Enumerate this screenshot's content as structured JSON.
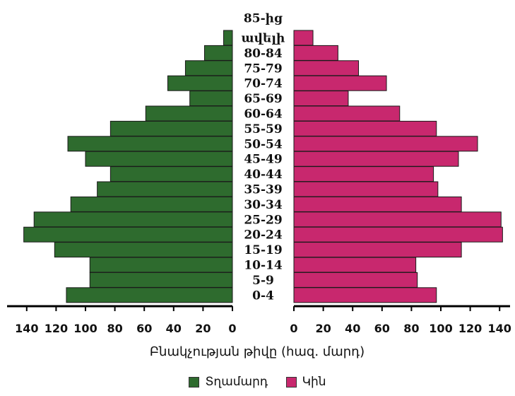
{
  "chart_data": {
    "type": "bar",
    "orientation": "horizontal-population-pyramid",
    "categories": [
      "0-4",
      "5-9",
      "10-14",
      "15-19",
      "20-24",
      "25-29",
      "30-34",
      "35-39",
      "40-44",
      "45-49",
      "50-54",
      "55-59",
      "60-64",
      "65-69",
      "70-74",
      "75-79",
      "80-84",
      "85-ից ավելի"
    ],
    "category_lines": [
      [
        "0-4"
      ],
      [
        "5-9"
      ],
      [
        "10-14"
      ],
      [
        "15-19"
      ],
      [
        "20-24"
      ],
      [
        "25-29"
      ],
      [
        "30-34"
      ],
      [
        "35-39"
      ],
      [
        "40-44"
      ],
      [
        "45-49"
      ],
      [
        "50-54"
      ],
      [
        "55-59"
      ],
      [
        "60-64"
      ],
      [
        "65-69"
      ],
      [
        "70-74"
      ],
      [
        "75-79"
      ],
      [
        "80-84"
      ],
      [
        "ավելի",
        "85-ից"
      ]
    ],
    "series": [
      {
        "name": "Տղամարդ",
        "color": "#2e6b2e",
        "values": [
          113,
          97,
          97,
          121,
          146,
          135,
          110,
          92,
          83,
          100,
          112,
          83,
          59,
          29,
          44,
          32,
          19,
          6
        ]
      },
      {
        "name": "Կին",
        "color": "#c8286e",
        "values": [
          97,
          84,
          83,
          114,
          146,
          141,
          114,
          98,
          95,
          112,
          125,
          97,
          72,
          37,
          63,
          44,
          30,
          13
        ]
      }
    ],
    "xlabel": "Բնակչության թիվը (հազ. մարդ)",
    "xlim": [
      0,
      140
    ],
    "xticks": [
      0,
      20,
      40,
      60,
      80,
      100,
      120,
      140
    ],
    "legend_position": "bottom-center"
  }
}
